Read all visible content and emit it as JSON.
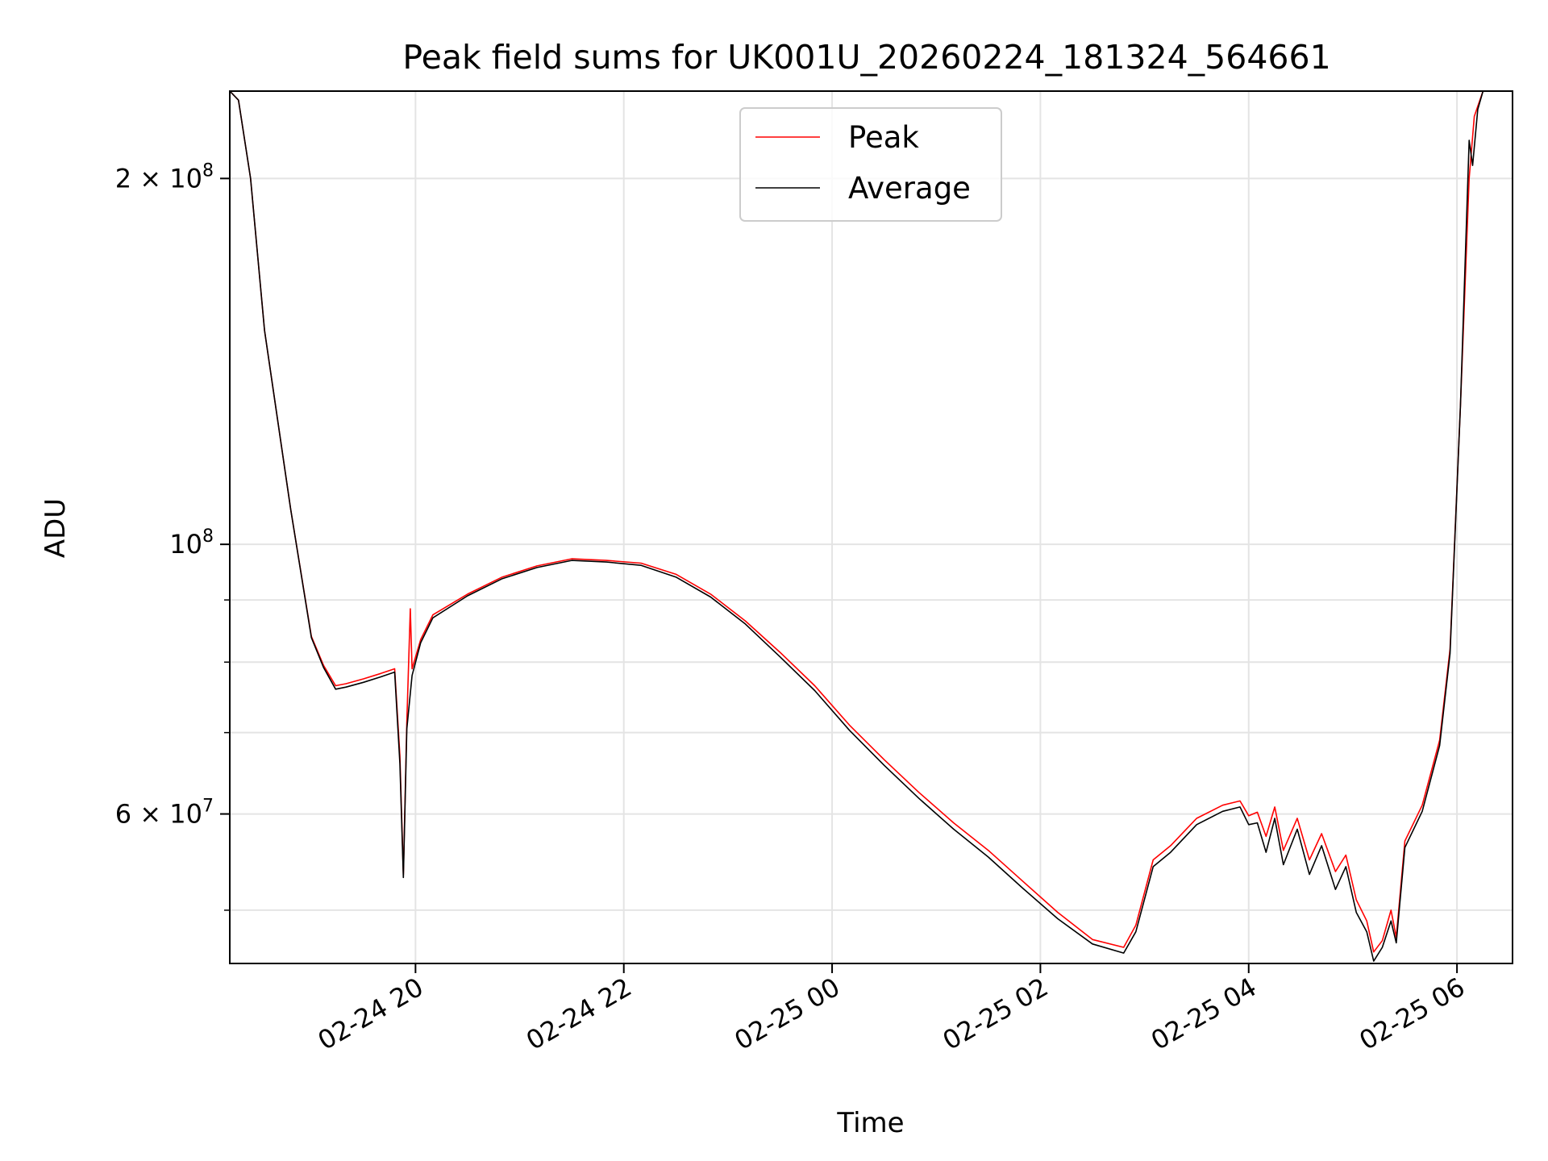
{
  "chart_data": {
    "type": "line",
    "title": "Peak field sums for UK001U_20260224_181324_564661",
    "xlabel": "Time",
    "ylabel": "ADU",
    "y_scale": "log",
    "xlim": [
      "2026-02-24 18:13",
      "2026-02-25 06:32"
    ],
    "ylim": [
      45200000,
      236000000
    ],
    "grid": true,
    "legend_position": "top-center",
    "x_ticks": [
      {
        "t": "2026-02-24 20:00",
        "label": "02-24 20"
      },
      {
        "t": "2026-02-24 22:00",
        "label": "02-24 22"
      },
      {
        "t": "2026-02-25 00:00",
        "label": "02-25 00"
      },
      {
        "t": "2026-02-25 02:00",
        "label": "02-25 02"
      },
      {
        "t": "2026-02-25 04:00",
        "label": "02-25 04"
      },
      {
        "t": "2026-02-25 06:00",
        "label": "02-25 06"
      }
    ],
    "y_ticks": [
      {
        "value": 200000000,
        "base": "2 × 10",
        "exp": "8"
      },
      {
        "value": 100000000,
        "base": "10",
        "exp": "8"
      },
      {
        "value": 60000000,
        "base": "6 × 10",
        "exp": "7"
      }
    ],
    "y_minor_ticks": [
      50000000,
      70000000,
      80000000,
      90000000
    ],
    "series": [
      {
        "name": "Peak",
        "color": "#ff0000",
        "points": [
          [
            "2026-02-24 18:13",
            236000000
          ],
          [
            "2026-02-24 18:18",
            232000000
          ],
          [
            "2026-02-24 18:25",
            200000000
          ],
          [
            "2026-02-24 18:33",
            150000000
          ],
          [
            "2026-02-24 18:48",
            107000000
          ],
          [
            "2026-02-24 19:00",
            84000000
          ],
          [
            "2026-02-24 19:07",
            79500000
          ],
          [
            "2026-02-24 19:14",
            76500000
          ],
          [
            "2026-02-24 19:20",
            76800000
          ],
          [
            "2026-02-24 19:30",
            77500000
          ],
          [
            "2026-02-24 19:40",
            78300000
          ],
          [
            "2026-02-24 19:48",
            79000000
          ],
          [
            "2026-02-24 19:51",
            67000000
          ],
          [
            "2026-02-24 19:53",
            53500000
          ],
          [
            "2026-02-24 19:55",
            71500000
          ],
          [
            "2026-02-24 19:57",
            88500000
          ],
          [
            "2026-02-24 19:58",
            79000000
          ],
          [
            "2026-02-24 20:03",
            83500000
          ],
          [
            "2026-02-24 20:10",
            87500000
          ],
          [
            "2026-02-24 20:30",
            91000000
          ],
          [
            "2026-02-24 20:50",
            94000000
          ],
          [
            "2026-02-24 21:10",
            96000000
          ],
          [
            "2026-02-24 21:30",
            97300000
          ],
          [
            "2026-02-24 21:50",
            97000000
          ],
          [
            "2026-02-24 22:10",
            96500000
          ],
          [
            "2026-02-24 22:30",
            94500000
          ],
          [
            "2026-02-24 22:50",
            91000000
          ],
          [
            "2026-02-24 23:10",
            86500000
          ],
          [
            "2026-02-24 23:30",
            81500000
          ],
          [
            "2026-02-24 23:50",
            76500000
          ],
          [
            "2026-02-25 00:10",
            71000000
          ],
          [
            "2026-02-25 00:30",
            66500000
          ],
          [
            "2026-02-25 00:50",
            62500000
          ],
          [
            "2026-02-25 01:10",
            59000000
          ],
          [
            "2026-02-25 01:30",
            56000000
          ],
          [
            "2026-02-25 01:50",
            52800000
          ],
          [
            "2026-02-25 02:10",
            49800000
          ],
          [
            "2026-02-25 02:30",
            47300000
          ],
          [
            "2026-02-25 02:48",
            46600000
          ],
          [
            "2026-02-25 02:55",
            48600000
          ],
          [
            "2026-02-25 03:05",
            55000000
          ],
          [
            "2026-02-25 03:15",
            56500000
          ],
          [
            "2026-02-25 03:30",
            59500000
          ],
          [
            "2026-02-25 03:45",
            61000000
          ],
          [
            "2026-02-25 03:55",
            61500000
          ],
          [
            "2026-02-25 04:00",
            59800000
          ],
          [
            "2026-02-25 04:05",
            60200000
          ],
          [
            "2026-02-25 04:10",
            57500000
          ],
          [
            "2026-02-25 04:15",
            60800000
          ],
          [
            "2026-02-25 04:20",
            56000000
          ],
          [
            "2026-02-25 04:28",
            59500000
          ],
          [
            "2026-02-25 04:35",
            55000000
          ],
          [
            "2026-02-25 04:42",
            57800000
          ],
          [
            "2026-02-25 04:50",
            53800000
          ],
          [
            "2026-02-25 04:56",
            55500000
          ],
          [
            "2026-02-25 05:02",
            51000000
          ],
          [
            "2026-02-25 05:08",
            49000000
          ],
          [
            "2026-02-25 05:12",
            46200000
          ],
          [
            "2026-02-25 05:17",
            47200000
          ],
          [
            "2026-02-25 05:22",
            50000000
          ],
          [
            "2026-02-25 05:25",
            47500000
          ],
          [
            "2026-02-25 05:30",
            57000000
          ],
          [
            "2026-02-25 05:40",
            61000000
          ],
          [
            "2026-02-25 05:50",
            69000000
          ],
          [
            "2026-02-25 05:56",
            82000000
          ],
          [
            "2026-02-25 06:02",
            130000000
          ],
          [
            "2026-02-25 06:07",
            200000000
          ],
          [
            "2026-02-25 06:10",
            225000000
          ],
          [
            "2026-02-25 06:15",
            236000000
          ],
          [
            "2026-02-25 06:32",
            236000000
          ]
        ]
      },
      {
        "name": "Average",
        "color": "#000000",
        "points": [
          [
            "2026-02-24 18:13",
            236000000
          ],
          [
            "2026-02-24 18:18",
            232000000
          ],
          [
            "2026-02-24 18:25",
            200000000
          ],
          [
            "2026-02-24 18:33",
            150000000
          ],
          [
            "2026-02-24 18:48",
            107000000
          ],
          [
            "2026-02-24 19:00",
            83800000
          ],
          [
            "2026-02-24 19:07",
            79200000
          ],
          [
            "2026-02-24 19:14",
            76000000
          ],
          [
            "2026-02-24 19:20",
            76300000
          ],
          [
            "2026-02-24 19:30",
            77000000
          ],
          [
            "2026-02-24 19:40",
            77800000
          ],
          [
            "2026-02-24 19:48",
            78500000
          ],
          [
            "2026-02-24 19:51",
            66000000
          ],
          [
            "2026-02-24 19:53",
            53200000
          ],
          [
            "2026-02-24 19:55",
            70500000
          ],
          [
            "2026-02-24 19:58",
            78000000
          ],
          [
            "2026-02-24 20:03",
            83000000
          ],
          [
            "2026-02-24 20:10",
            87000000
          ],
          [
            "2026-02-24 20:30",
            90700000
          ],
          [
            "2026-02-24 20:50",
            93700000
          ],
          [
            "2026-02-24 21:10",
            95700000
          ],
          [
            "2026-02-24 21:30",
            97000000
          ],
          [
            "2026-02-24 21:50",
            96700000
          ],
          [
            "2026-02-24 22:10",
            96100000
          ],
          [
            "2026-02-24 22:30",
            94000000
          ],
          [
            "2026-02-24 22:50",
            90500000
          ],
          [
            "2026-02-24 23:10",
            86000000
          ],
          [
            "2026-02-24 23:30",
            80800000
          ],
          [
            "2026-02-24 23:50",
            75800000
          ],
          [
            "2026-02-25 00:10",
            70300000
          ],
          [
            "2026-02-25 00:30",
            65800000
          ],
          [
            "2026-02-25 00:50",
            61800000
          ],
          [
            "2026-02-25 01:10",
            58300000
          ],
          [
            "2026-02-25 01:30",
            55300000
          ],
          [
            "2026-02-25 01:50",
            52100000
          ],
          [
            "2026-02-25 02:10",
            49200000
          ],
          [
            "2026-02-25 02:30",
            46900000
          ],
          [
            "2026-02-25 02:48",
            46100000
          ],
          [
            "2026-02-25 02:55",
            48000000
          ],
          [
            "2026-02-25 03:05",
            54300000
          ],
          [
            "2026-02-25 03:15",
            55800000
          ],
          [
            "2026-02-25 03:30",
            58800000
          ],
          [
            "2026-02-25 03:45",
            60300000
          ],
          [
            "2026-02-25 03:55",
            60800000
          ],
          [
            "2026-02-25 04:00",
            58800000
          ],
          [
            "2026-02-25 04:05",
            59000000
          ],
          [
            "2026-02-25 04:10",
            55800000
          ],
          [
            "2026-02-25 04:15",
            59500000
          ],
          [
            "2026-02-25 04:20",
            54500000
          ],
          [
            "2026-02-25 04:28",
            58300000
          ],
          [
            "2026-02-25 04:35",
            53500000
          ],
          [
            "2026-02-25 04:42",
            56500000
          ],
          [
            "2026-02-25 04:50",
            52000000
          ],
          [
            "2026-02-25 04:56",
            54300000
          ],
          [
            "2026-02-25 05:02",
            49800000
          ],
          [
            "2026-02-25 05:08",
            48000000
          ],
          [
            "2026-02-25 05:12",
            45400000
          ],
          [
            "2026-02-25 05:17",
            46600000
          ],
          [
            "2026-02-25 05:22",
            49000000
          ],
          [
            "2026-02-25 05:25",
            47000000
          ],
          [
            "2026-02-25 05:30",
            56300000
          ],
          [
            "2026-02-25 05:40",
            60300000
          ],
          [
            "2026-02-25 05:50",
            68300000
          ],
          [
            "2026-02-25 05:56",
            81300000
          ],
          [
            "2026-02-25 06:02",
            130000000
          ],
          [
            "2026-02-25 06:07",
            215000000
          ],
          [
            "2026-02-25 06:09",
            205000000
          ],
          [
            "2026-02-25 06:12",
            228000000
          ],
          [
            "2026-02-25 06:15",
            236000000
          ],
          [
            "2026-02-25 06:32",
            236000000
          ]
        ]
      }
    ]
  }
}
